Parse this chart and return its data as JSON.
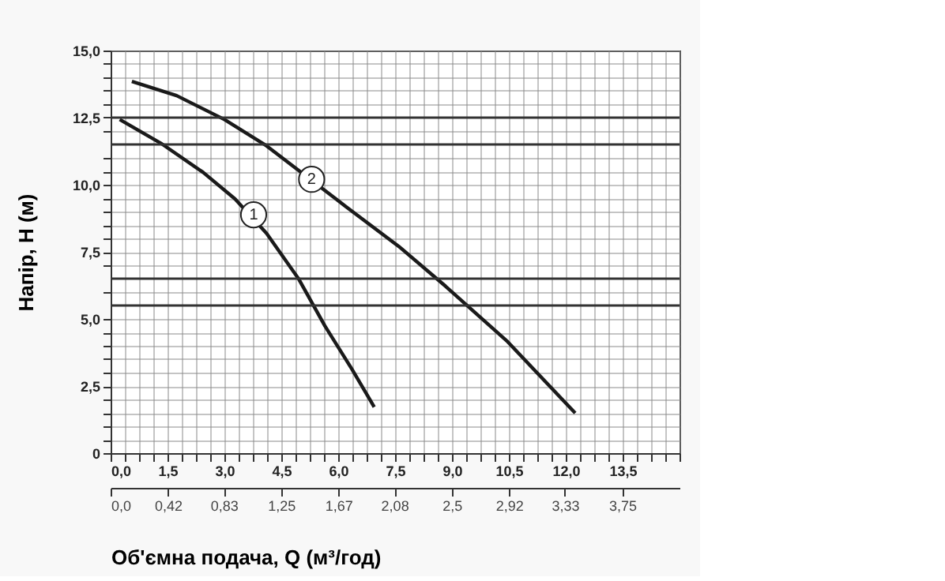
{
  "chart_data": {
    "type": "line",
    "xlabel": "Об'ємна подача, Q (м³/год)",
    "ylabel": "Напір, Н (м)",
    "xlim": [
      0,
      15
    ],
    "ylim": [
      0,
      15
    ],
    "x2lim": [
      0,
      4.17
    ],
    "xticks": [
      {
        "value": 0,
        "label": "0,0"
      },
      {
        "value": 0.375,
        "label": null
      },
      {
        "value": 0.75,
        "label": null
      },
      {
        "value": 1.125,
        "label": null
      },
      {
        "value": 1.5,
        "label": "1,5"
      },
      {
        "value": 1.875,
        "label": null
      },
      {
        "value": 2.25,
        "label": null
      },
      {
        "value": 2.625,
        "label": null
      },
      {
        "value": 3,
        "label": "3,0"
      },
      {
        "value": 3.375,
        "label": null
      },
      {
        "value": 3.75,
        "label": null
      },
      {
        "value": 4.125,
        "label": null
      },
      {
        "value": 4.5,
        "label": "4,5"
      },
      {
        "value": 4.875,
        "label": null
      },
      {
        "value": 5.25,
        "label": null
      },
      {
        "value": 5.625,
        "label": null
      },
      {
        "value": 6,
        "label": "6,0"
      },
      {
        "value": 6.375,
        "label": null
      },
      {
        "value": 6.75,
        "label": null
      },
      {
        "value": 7.125,
        "label": null
      },
      {
        "value": 7.5,
        "label": "7,5"
      },
      {
        "value": 7.875,
        "label": null
      },
      {
        "value": 8.25,
        "label": null
      },
      {
        "value": 8.625,
        "label": null
      },
      {
        "value": 9,
        "label": "9,0"
      },
      {
        "value": 9.375,
        "label": null
      },
      {
        "value": 9.75,
        "label": null
      },
      {
        "value": 10.125,
        "label": null
      },
      {
        "value": 10.5,
        "label": "10,5"
      },
      {
        "value": 10.875,
        "label": null
      },
      {
        "value": 11.25,
        "label": null
      },
      {
        "value": 11.625,
        "label": null
      },
      {
        "value": 12,
        "label": "12,0"
      },
      {
        "value": 12.375,
        "label": null
      },
      {
        "value": 12.75,
        "label": null
      },
      {
        "value": 13.125,
        "label": null
      },
      {
        "value": 13.5,
        "label": "13,5"
      },
      {
        "value": 13.875,
        "label": null
      },
      {
        "value": 14.25,
        "label": null
      },
      {
        "value": 14.625,
        "label": null
      },
      {
        "value": 15,
        "label": null
      }
    ],
    "yticks": [
      0,
      {
        "value": 0.5,
        "label": null
      },
      {
        "value": 1,
        "label": null
      },
      {
        "value": 1.5,
        "label": null
      },
      {
        "value": 2,
        "label": null
      },
      {
        "value": 2.5,
        "label": "2,5"
      },
      {
        "value": 3,
        "label": null
      },
      {
        "value": 3.5,
        "label": null
      },
      {
        "value": 4,
        "label": null
      },
      {
        "value": 4.5,
        "label": null
      },
      {
        "value": 5,
        "label": "5,0"
      },
      {
        "value": 6,
        "label": null
      },
      {
        "value": 7,
        "label": null
      },
      {
        "value": 7.5,
        "label": "7,5"
      },
      {
        "value": 8,
        "label": null
      },
      {
        "value": 8.5,
        "label": null
      },
      {
        "value": 9,
        "label": null
      },
      {
        "value": 9.5,
        "label": null
      },
      {
        "value": 10,
        "label": "10,0"
      },
      {
        "value": 10.5,
        "label": null
      },
      {
        "value": 11,
        "label": null
      },
      {
        "value": 12,
        "label": null
      },
      {
        "value": 12.5,
        "label": "12,5"
      },
      {
        "value": 13,
        "label": null
      },
      {
        "value": 13.5,
        "label": null
      },
      {
        "value": 14,
        "label": null
      },
      {
        "value": 14.5,
        "label": null
      },
      {
        "value": 15,
        "label": "15,0"
      }
    ],
    "x2ticks": [
      {
        "value": 0,
        "label": "0,0"
      },
      {
        "value": 0.42,
        "label": "0,42"
      },
      {
        "value": 0.83,
        "label": "0,83"
      },
      {
        "value": 1.25,
        "label": "1,25"
      },
      {
        "value": 1.67,
        "label": "1,67"
      },
      {
        "value": 2.08,
        "label": "2,08"
      },
      {
        "value": 2.5,
        "label": "2,5"
      },
      {
        "value": 2.92,
        "label": "2,92"
      },
      {
        "value": 3.33,
        "label": "3,33"
      },
      {
        "value": 3.75,
        "label": "3,75"
      }
    ],
    "grid": true,
    "legend": false,
    "marker": "none",
    "line_style": "solid",
    "series": [
      {
        "color": "#1a1a1a",
        "x": [
          0.24,
          1.32,
          2.44,
          3.28,
          4.11,
          4.95,
          5.65,
          6.35,
          6.95
        ],
        "values": [
          12.43,
          11.55,
          10.46,
          9.47,
          8.19,
          6.51,
          4.74,
          3.16,
          1.72
        ]
      },
      {
        "color": "#1a1a1a",
        "x": [
          0.56,
          1.74,
          3.0,
          4.11,
          6.21,
          7.6,
          8.83,
          10.47,
          12.25
        ],
        "values": [
          13.85,
          13.32,
          12.43,
          11.45,
          9.18,
          7.7,
          6.22,
          4.15,
          1.49
        ]
      }
    ],
    "ref_lines": [
      {
        "axis": "y",
        "value": 12.5,
        "color": "#333333"
      },
      {
        "axis": "y",
        "value": 11.5,
        "color": "#333333"
      },
      {
        "axis": "y",
        "value": 6.5,
        "color": "#333333"
      },
      {
        "axis": "y",
        "value": 5.5,
        "color": "#333333"
      }
    ],
    "annotations": [
      {
        "text": "1",
        "x": 3.77,
        "y": 8.88
      },
      {
        "text": "2",
        "x": 5.3,
        "y": 10.2
      }
    ]
  }
}
